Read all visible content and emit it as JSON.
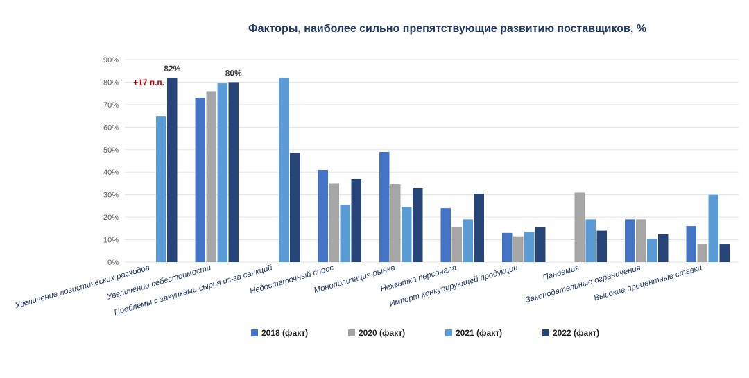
{
  "chart_data": {
    "type": "bar",
    "title": "Факторы, наиболее сильно препятствующие развитию поставщиков, %",
    "xlabel": "",
    "ylabel": "",
    "ylim": [
      0,
      90
    ],
    "yticks": [
      "0%",
      "10%",
      "20%",
      "30%",
      "40%",
      "50%",
      "60%",
      "70%",
      "80%",
      "90%"
    ],
    "ytick_values": [
      0,
      10,
      20,
      30,
      40,
      50,
      60,
      70,
      80,
      90
    ],
    "grid": true,
    "legend_position": "bottom",
    "categories": [
      "Увеличение логистических расходов",
      "Увеличение себестоимости",
      "Проблемы с закупками сырья из-за санкций",
      "Недостаточный спрос",
      "Монополизация рынка",
      "Нехватка персонала",
      "Импорт конкурирующей продукции",
      "Пандемия",
      "Законодательные ограничения",
      "Высокие процентные ставки"
    ],
    "series": [
      {
        "name": "2018 (факт)",
        "color": "#4472c4",
        "values": [
          null,
          73,
          null,
          41,
          49,
          24,
          13,
          null,
          19,
          16
        ]
      },
      {
        "name": "2020 (факт)",
        "color": "#a5a5a5",
        "values": [
          null,
          76,
          null,
          35,
          34.5,
          15.5,
          11.5,
          31,
          19,
          8
        ]
      },
      {
        "name": "2021 (факт)",
        "color": "#5b9bd5",
        "values": [
          65,
          79.5,
          82,
          25.5,
          24.5,
          19,
          13.5,
          19,
          10.5,
          30
        ]
      },
      {
        "name": "2022 (факт)",
        "color": "#264478",
        "values": [
          82,
          80,
          48.5,
          37,
          33,
          30.5,
          15.5,
          14,
          12.5,
          8
        ]
      }
    ],
    "data_labels": [
      {
        "category_index": 0,
        "series_index": 3,
        "text": "82%"
      },
      {
        "category_index": 1,
        "series_index": 3,
        "text": "80%"
      }
    ],
    "annotations": [
      {
        "category_index": 0,
        "text": "+17 п.п."
      }
    ]
  }
}
